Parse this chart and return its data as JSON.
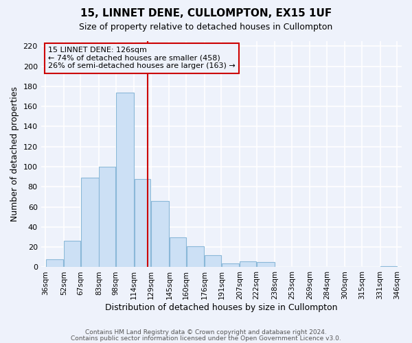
{
  "title": "15, LINNET DENE, CULLOMPTON, EX15 1UF",
  "subtitle": "Size of property relative to detached houses in Cullompton",
  "xlabel": "Distribution of detached houses by size in Cullompton",
  "ylabel": "Number of detached properties",
  "bar_color": "#cce0f5",
  "bar_edge_color": "#8ab8d8",
  "background_color": "#eef2fb",
  "grid_color": "#ffffff",
  "vline_x": 126,
  "vline_color": "#cc0000",
  "annotation_line1": "15 LINNET DENE: 126sqm",
  "annotation_line2": "← 74% of detached houses are smaller (458)",
  "annotation_line3": "26% of semi-detached houses are larger (163) →",
  "annotation_box_color": "#cc0000",
  "bin_edges": [
    36,
    52,
    67,
    83,
    98,
    114,
    129,
    145,
    160,
    176,
    191,
    207,
    222,
    238,
    253,
    269,
    284,
    300,
    315,
    331,
    346
  ],
  "bin_labels": [
    "36sqm",
    "52sqm",
    "67sqm",
    "83sqm",
    "98sqm",
    "114sqm",
    "129sqm",
    "145sqm",
    "160sqm",
    "176sqm",
    "191sqm",
    "207sqm",
    "222sqm",
    "238sqm",
    "253sqm",
    "269sqm",
    "284sqm",
    "300sqm",
    "315sqm",
    "331sqm",
    "346sqm"
  ],
  "bar_heights": [
    8,
    26,
    89,
    100,
    174,
    88,
    66,
    30,
    21,
    12,
    4,
    6,
    5,
    0,
    0,
    0,
    0,
    0,
    0,
    1
  ],
  "ylim": [
    0,
    225
  ],
  "yticks": [
    0,
    20,
    40,
    60,
    80,
    100,
    120,
    140,
    160,
    180,
    200,
    220
  ],
  "footer1": "Contains HM Land Registry data © Crown copyright and database right 2024.",
  "footer2": "Contains public sector information licensed under the Open Government Licence v3.0."
}
